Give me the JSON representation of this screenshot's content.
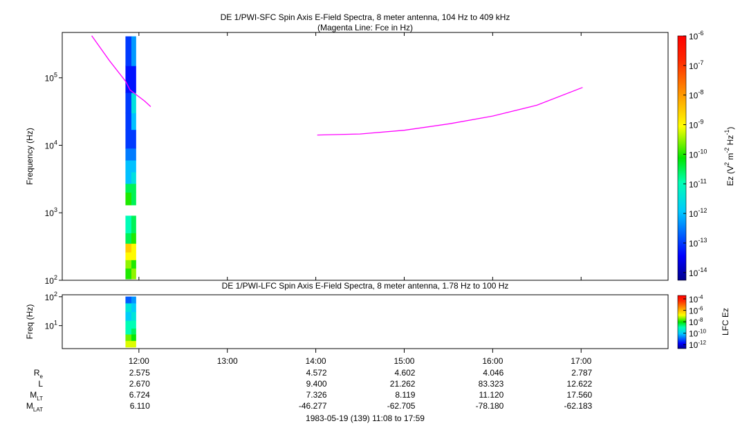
{
  "chart_data": [
    {
      "type": "spectrogram",
      "title": "DE 1/PWI-SFC  Spin Axis E-Field Spectra, 8 meter antenna, 104 Hz to 409 kHz",
      "subtitle": "(Magenta Line: Fce in Hz)",
      "ylabel": "Frequency (Hz)",
      "yscale": "log",
      "xlim": [
        "11:08",
        "17:59"
      ],
      "ylim": [
        100,
        470000
      ],
      "yticks": [
        {
          "value": 100,
          "label": "10",
          "exp": "2"
        },
        {
          "value": 1000,
          "label": "10",
          "exp": "3"
        },
        {
          "value": 10000,
          "label": "10",
          "exp": "4"
        },
        {
          "value": 100000,
          "label": "10",
          "exp": "5"
        }
      ],
      "time_bins": [
        "11:51",
        "11:55",
        "11:58"
      ],
      "freq_bins": [
        104,
        150,
        200,
        260,
        350,
        500,
        900,
        1300,
        2000,
        2700,
        4000,
        6000,
        9000,
        17000,
        30000,
        60000,
        150000,
        409000
      ],
      "z": [
        [
          1e-10,
          3e-10,
          1e-09,
          3e-09,
          3e-11,
          1e-11,
          null,
          1e-10,
          3e-11,
          1e-12,
          1e-12,
          3e-13,
          1e-13,
          1e-13,
          1e-13,
          5e-14,
          1e-13
        ],
        [
          3e-10,
          1e-10,
          1e-09,
          1e-09,
          1e-10,
          3e-11,
          null,
          3e-11,
          3e-11,
          3e-12,
          1e-12,
          3e-13,
          1e-13,
          1e-12,
          3e-12,
          5e-14,
          5e-13
        ]
      ],
      "zlabel": [
        "Ez (V",
        "2",
        " m",
        "-2",
        " Hz",
        "-1",
        ")"
      ],
      "zscale": "log",
      "zlim": [
        5.5e-15,
        1e-06
      ],
      "zticks": [
        {
          "value": 1e-06,
          "label": "10",
          "exp": "-6"
        },
        {
          "value": 1e-07,
          "label": "10",
          "exp": "-7"
        },
        {
          "value": 1e-08,
          "label": "10",
          "exp": "-8"
        },
        {
          "value": 1e-09,
          "label": "10",
          "exp": "-9"
        },
        {
          "value": 1e-10,
          "label": "10",
          "exp": "-10"
        },
        {
          "value": 1e-11,
          "label": "10",
          "exp": "-11"
        },
        {
          "value": 1e-12,
          "label": "10",
          "exp": "-12"
        },
        {
          "value": 1e-13,
          "label": "10",
          "exp": "-13"
        },
        {
          "value": 1e-14,
          "label": "10",
          "exp": "-14"
        }
      ],
      "colormap": "jet",
      "line": {
        "color": "#ff00ff",
        "x": [
          "11:28",
          "11:40",
          "11:51",
          "11:54",
          "12:04",
          "12:08",
          null,
          "14:01",
          "14:30",
          "15:00",
          "15:31",
          "16:00",
          "16:30",
          "17:01"
        ],
        "values": [
          420000,
          180000,
          89000,
          66000,
          45000,
          37400,
          null,
          14200,
          14700,
          16700,
          20900,
          27100,
          39300,
          71900
        ]
      }
    },
    {
      "type": "spectrogram",
      "title": "DE 1/PWI-LFC  Spin Axis E-Field Spectra, 8 meter antenna, 1.78 Hz to 100 Hz",
      "ylabel": "Freq (Hz)",
      "yscale": "log",
      "xlim": [
        "11:08",
        "17:59"
      ],
      "ylim": [
        1.6,
        117
      ],
      "yticks": [
        {
          "value": 10,
          "label": "10",
          "exp": "1"
        },
        {
          "value": 100,
          "label": "10",
          "exp": "2"
        }
      ],
      "xticks": [
        "12:00",
        "13:00",
        "14:00",
        "15:00",
        "16:00",
        "17:00"
      ],
      "time_bins": [
        "11:51",
        "11:55",
        "11:58"
      ],
      "freq_bins": [
        1.78,
        3,
        5,
        8,
        15,
        30,
        60,
        100
      ],
      "z": [
        [
          1e-07,
          3e-08,
          1e-09,
          1e-09,
          1e-10,
          3e-10,
          1e-11
        ],
        [
          1e-07,
          1e-08,
          3e-09,
          1e-09,
          3e-10,
          1e-10,
          3e-11
        ]
      ],
      "zlabel": [
        "LFC Ez"
      ],
      "zscale": "log",
      "zlim": [
        2e-13,
        0.0004
      ],
      "zticks": [
        {
          "value": 0.0001,
          "label": "10",
          "exp": "-4"
        },
        {
          "value": 1e-06,
          "label": "10",
          "exp": "-6"
        },
        {
          "value": 1e-08,
          "label": "10",
          "exp": "-8"
        },
        {
          "value": 1e-10,
          "label": "10",
          "exp": "-10"
        },
        {
          "value": 1e-12,
          "label": "10",
          "exp": "-12"
        }
      ],
      "colormap": "jet"
    }
  ],
  "ephemeris": {
    "rows": [
      {
        "label": "R",
        "sub": "e",
        "values": [
          "2.575",
          null,
          "4.572",
          "4.602",
          "4.046",
          "2.787"
        ]
      },
      {
        "label": "L",
        "values": [
          "2.670",
          null,
          "9.400",
          "21.262",
          "83.323",
          "12.622"
        ]
      },
      {
        "label": "M",
        "sub": "LT",
        "values": [
          "6.724",
          null,
          "7.326",
          "8.119",
          "11.120",
          "17.560"
        ]
      },
      {
        "label": "M",
        "sub": "LAT",
        "values": [
          "6.110",
          null,
          "-46.277",
          "-62.705",
          "-78.180",
          "-62.183"
        ]
      }
    ],
    "footer": "1983-05-19 (139) 11:08 to 17:59"
  }
}
